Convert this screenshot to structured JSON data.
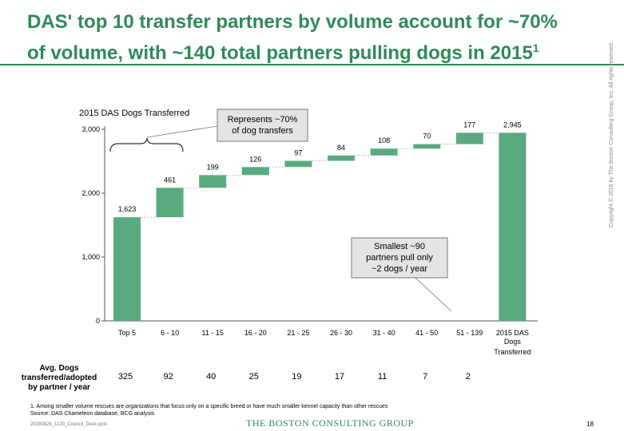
{
  "title_line1": "DAS' top 10 transfer partners by volume account for ~70%",
  "title_line2": "of volume, with ~140 total partners pulling dogs in 2015",
  "title_sup": "1",
  "chart_data": {
    "type": "bar",
    "subtype": "waterfall",
    "title": "2015 DAS  Dogs Transferred",
    "categories": [
      "Top 5",
      "6 - 10",
      "11 - 15",
      "16 - 20",
      "21 - 25",
      "26 - 30",
      "31 - 40",
      "41 - 50",
      "51 - 139",
      "2015 DAS Dogs Transferred"
    ],
    "values": [
      1623,
      461,
      199,
      126,
      97,
      84,
      108,
      70,
      177,
      2945
    ],
    "value_labels": [
      "1,623",
      "461",
      "199",
      "126",
      "97",
      "84",
      "108",
      "70",
      "177",
      "2,945"
    ],
    "is_total": [
      false,
      false,
      false,
      false,
      false,
      false,
      false,
      false,
      false,
      true
    ],
    "ylim": [
      0,
      3000
    ],
    "yticks": [
      0,
      1000,
      2000,
      3000
    ],
    "ytick_labels": [
      "0",
      "1,000",
      "2,000",
      "3,000"
    ],
    "bar_color": "#5aaa80",
    "connector_color": "#aaaaaa",
    "callout1": [
      "Represents ~70%",
      "of dog transfers"
    ],
    "callout2": [
      "Smallest ~90",
      "partners pull only",
      "~2 dogs / year"
    ],
    "row_label": [
      "Avg. Dogs",
      "transferred/adopted",
      "by partner / year"
    ],
    "row_values": [
      "325",
      "92",
      "40",
      "25",
      "19",
      "17",
      "11",
      "7",
      "2"
    ]
  },
  "footnote1": "1. Among smaller volume rescues are organizations that focus only on a specific breed or have much smaller kennel capacity than other rescues",
  "footnote2": "Source: DAS Chameleon database,  BCG analysis",
  "filename": "20160826_1130_Council_Deck.pptx",
  "logo": "THE BOSTON CONSULTING GROUP",
  "page_number": "18",
  "copyright": "Copyright © 2016 by The Boston Consulting Group, Inc. All rights reserved.",
  "colors": {
    "accent": "#2e8b57"
  }
}
